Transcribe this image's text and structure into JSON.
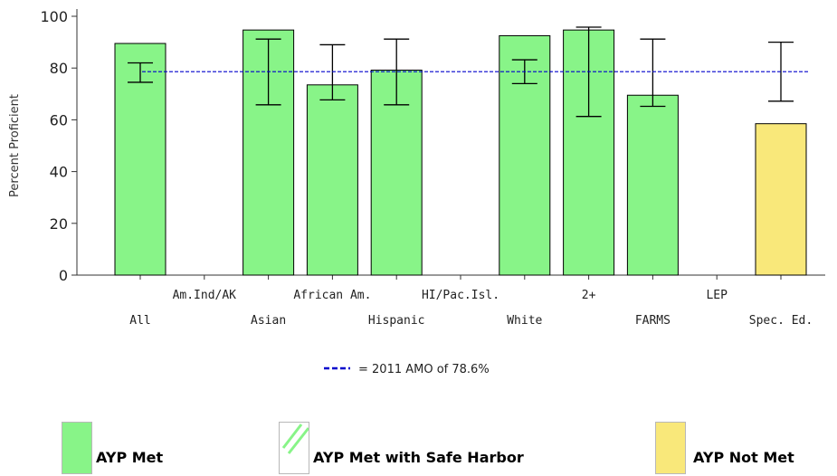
{
  "chart_data": {
    "type": "bar",
    "ylabel": "Percent Proficient",
    "xlabel": "",
    "title": "",
    "ylim": [
      0,
      100
    ],
    "yticks": [
      0,
      20,
      40,
      60,
      80,
      100
    ],
    "grid": false,
    "categories": [
      "All",
      "Am.Ind/AK",
      "Asian",
      "African Am.",
      "Hispanic",
      "HI/Pac.Isl.",
      "White",
      "2+",
      "FARMS",
      "LEP",
      "Spec. Ed."
    ],
    "label_row": [
      "lower",
      "upper",
      "lower",
      "upper",
      "lower",
      "upper",
      "lower",
      "upper",
      "lower",
      "upper",
      "lower"
    ],
    "values": [
      89.5,
      null,
      94.7,
      73.5,
      79.2,
      null,
      92.5,
      94.7,
      69.5,
      null,
      58.5
    ],
    "status": [
      "AYP Met",
      null,
      "AYP Met",
      "AYP Met",
      "AYP Met",
      null,
      "AYP Met",
      "AYP Met",
      "AYP Met",
      null,
      "AYP Not Met"
    ],
    "error_bars": [
      {
        "low": 74.5,
        "high": 82.0
      },
      null,
      {
        "low": 65.8,
        "high": 91.2
      },
      {
        "low": 67.7,
        "high": 89.0
      },
      {
        "low": 65.8,
        "high": 91.2
      },
      null,
      {
        "low": 74.0,
        "high": 83.2
      },
      {
        "low": 61.3,
        "high": 95.8
      },
      {
        "low": 65.2,
        "high": 91.2
      },
      null,
      {
        "low": 67.2,
        "high": 90.0
      }
    ],
    "reference_line": {
      "value": 78.6,
      "label": "= 2011 AMO of 78.6%",
      "color": "#0000cc",
      "style": "dashed"
    }
  },
  "colors": {
    "ayp_met": "#88f488",
    "ayp_safe_harbor": "#88f488",
    "ayp_not_met": "#f9e87a",
    "bar_stroke": "#000000",
    "amo_line": "#0000cc"
  },
  "legend": {
    "met": "AYP Met",
    "safe_harbor": "AYP Met with Safe Harbor",
    "not_met": "AYP Not Met"
  }
}
